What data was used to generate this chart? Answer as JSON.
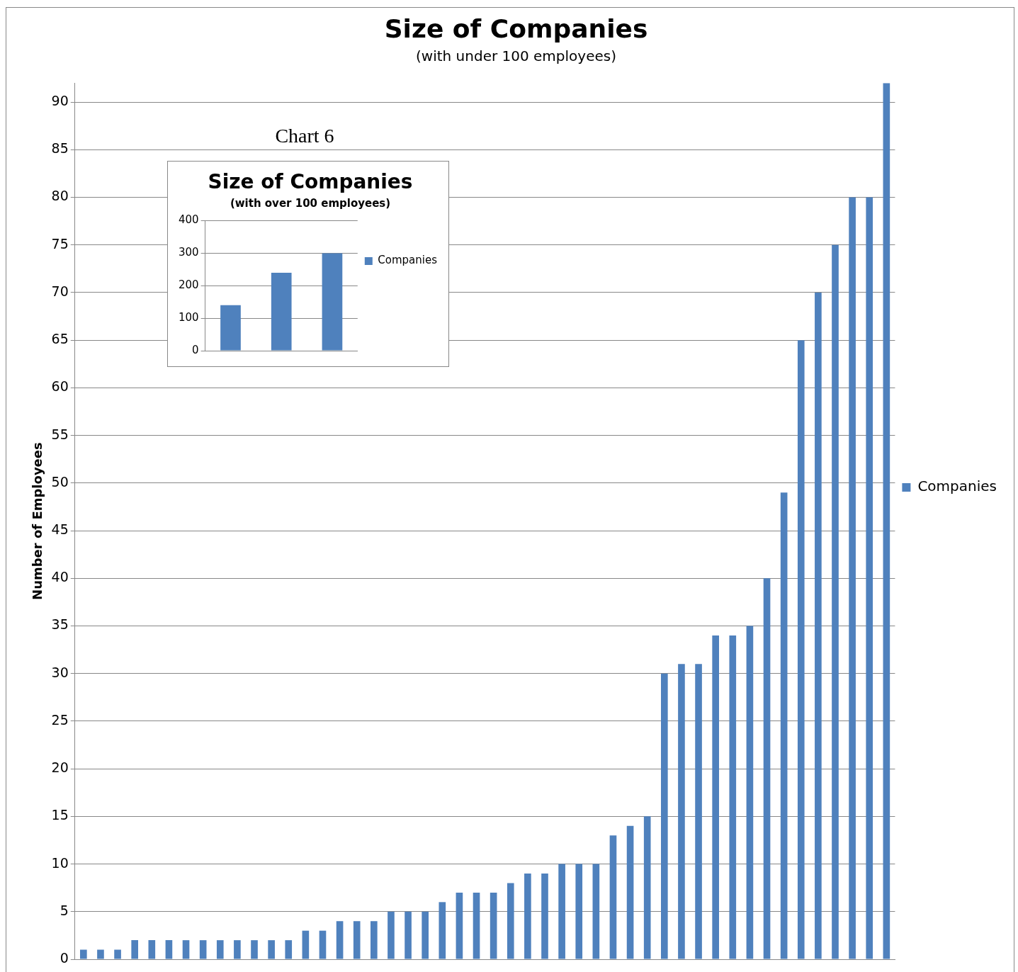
{
  "chart_data": [
    {
      "type": "bar",
      "title": "Size of Companies",
      "subtitle": "(with under 100 employees)",
      "ylabel": "Number of Employees",
      "annotations": [
        "Chart 6"
      ],
      "categories": [
        null,
        null,
        null,
        null,
        null,
        null,
        null,
        null,
        null,
        null,
        null,
        null,
        null,
        null,
        null,
        null,
        null,
        null,
        null,
        null,
        null,
        null,
        null,
        null,
        null,
        null,
        null,
        null,
        null,
        null,
        null,
        null,
        null,
        null,
        null,
        null,
        null,
        null,
        null,
        null,
        null,
        null,
        null,
        null,
        null,
        null,
        null,
        null
      ],
      "series": [
        {
          "name": "Companies",
          "color": "#4f81bd",
          "values": [
            1,
            1,
            1,
            2,
            2,
            2,
            2,
            2,
            2,
            2,
            2,
            2,
            2,
            3,
            3,
            4,
            4,
            4,
            5,
            5,
            5,
            6,
            7,
            7,
            7,
            8,
            9,
            9,
            10,
            10,
            10,
            13,
            14,
            15,
            30,
            31,
            31,
            34,
            34,
            35,
            40,
            49,
            65,
            70,
            75,
            80,
            80,
            92
          ]
        }
      ],
      "ylim": [
        0,
        92
      ],
      "yticks": [
        0,
        5,
        10,
        15,
        20,
        25,
        30,
        35,
        40,
        45,
        50,
        55,
        60,
        65,
        70,
        75,
        80,
        85,
        90
      ],
      "grid": "y",
      "legend": "right",
      "tick_labels": "y"
    },
    {
      "type": "bar",
      "title": "Size of Companies",
      "subtitle": "(with over 100 employees)",
      "categories": [
        null,
        null,
        null
      ],
      "series": [
        {
          "name": "Companies",
          "color": "#4f81bd",
          "values": [
            140,
            240,
            300
          ]
        }
      ],
      "ylim": [
        0,
        400
      ],
      "yticks": [
        0,
        100,
        200,
        300,
        400
      ],
      "grid": "y",
      "legend": "right",
      "tick_labels": "y"
    }
  ]
}
